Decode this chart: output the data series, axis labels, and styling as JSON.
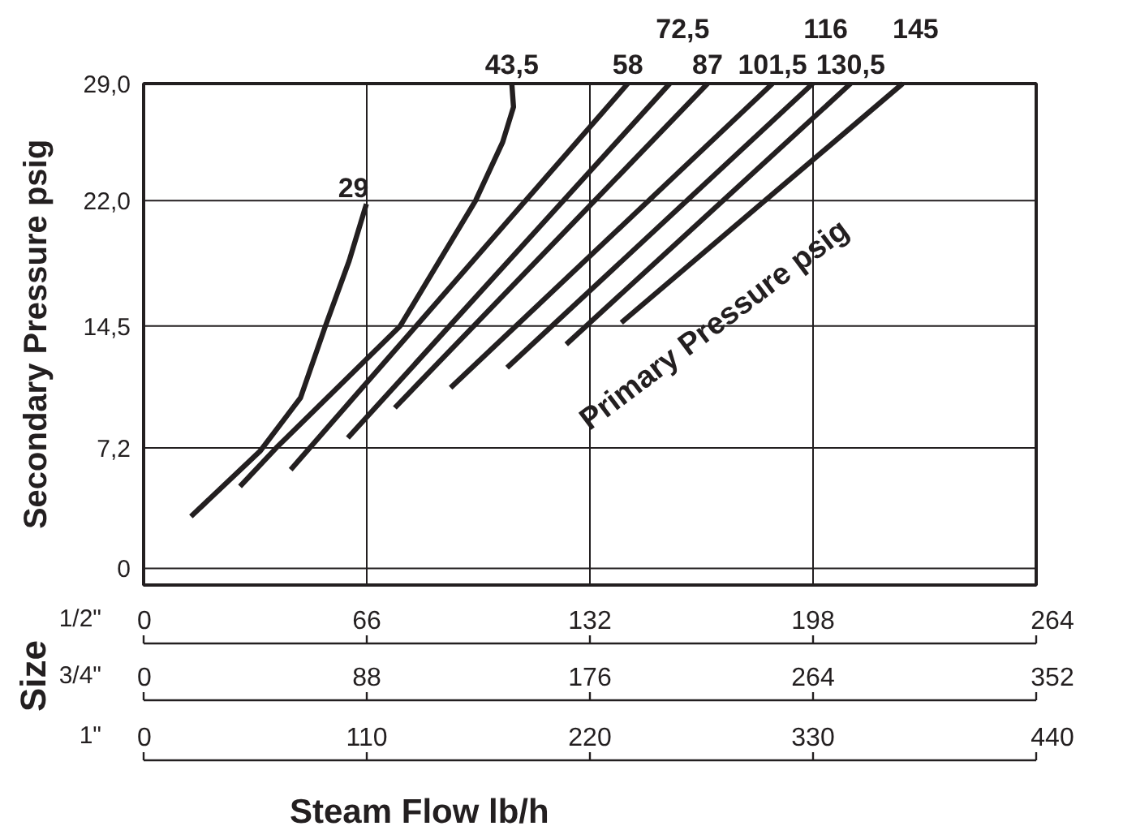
{
  "chart_data": {
    "type": "line",
    "ylabel": "Secondary Pressure psig",
    "xlabel": "Steam Flow lb/h",
    "annotations": [
      "Primary Pressure psig",
      "Size",
      "1/2\"",
      "3/4\"",
      "1\"",
      "0",
      "110",
      "220",
      "330",
      "440"
    ],
    "xlim": [
      0,
      264
    ],
    "xticks": [
      0,
      66,
      132,
      198,
      264
    ],
    "x2lim": [
      0,
      352
    ],
    "x2ticks": [
      0,
      88,
      176,
      264,
      352
    ],
    "ylim": [
      -1,
      29
    ],
    "yticks": [
      0,
      {
        "value": 7.2,
        "label": "7,2"
      },
      {
        "value": 14.5,
        "label": "14,5"
      },
      {
        "value": 22.0,
        "label": "22,0"
      },
      {
        "value": 29.0,
        "label": "29,0"
      }
    ],
    "grid": true,
    "marker": "none",
    "line_style": "solid",
    "series": [
      {
        "name": "29",
        "color": "#231f20",
        "x": [
          14.0,
          34.4,
          46.4,
          53.6,
          60.8,
          65.9
        ],
        "values": [
          3.1,
          7.0,
          10.2,
          14.4,
          18.4,
          21.8
        ]
      },
      {
        "name": "43,5",
        "color": "#231f20",
        "x": [
          28.5,
          39.2,
          75.9,
          98.2,
          106.2,
          109.4,
          108.9
        ],
        "values": [
          4.9,
          7.2,
          14.5,
          22.0,
          25.5,
          27.6,
          29.0
        ]
      },
      {
        "name": "58",
        "color": "#231f20",
        "x": [
          43.5,
          143.2
        ],
        "values": [
          5.9,
          29.0
        ]
      },
      {
        "name": "72,5",
        "color": "#231f20",
        "x": [
          60.4,
          155.6
        ],
        "values": [
          7.8,
          29.0
        ]
      },
      {
        "name": "87",
        "color": "#231f20",
        "x": [
          74.3,
          166.8
        ],
        "values": [
          9.6,
          29.0
        ]
      },
      {
        "name": "101,5",
        "color": "#231f20",
        "x": [
          90.8,
          186.0
        ],
        "values": [
          10.8,
          29.0
        ]
      },
      {
        "name": "116",
        "color": "#231f20",
        "x": [
          107.5,
          197.9
        ],
        "values": [
          12.0,
          29.0
        ]
      },
      {
        "name": "130,5",
        "color": "#231f20",
        "x": [
          125.0,
          209.1
        ],
        "values": [
          13.4,
          29.0
        ]
      },
      {
        "name": "145",
        "color": "#231f20",
        "x": [
          141.3,
          224.5
        ],
        "values": [
          14.7,
          29.0
        ]
      }
    ]
  }
}
